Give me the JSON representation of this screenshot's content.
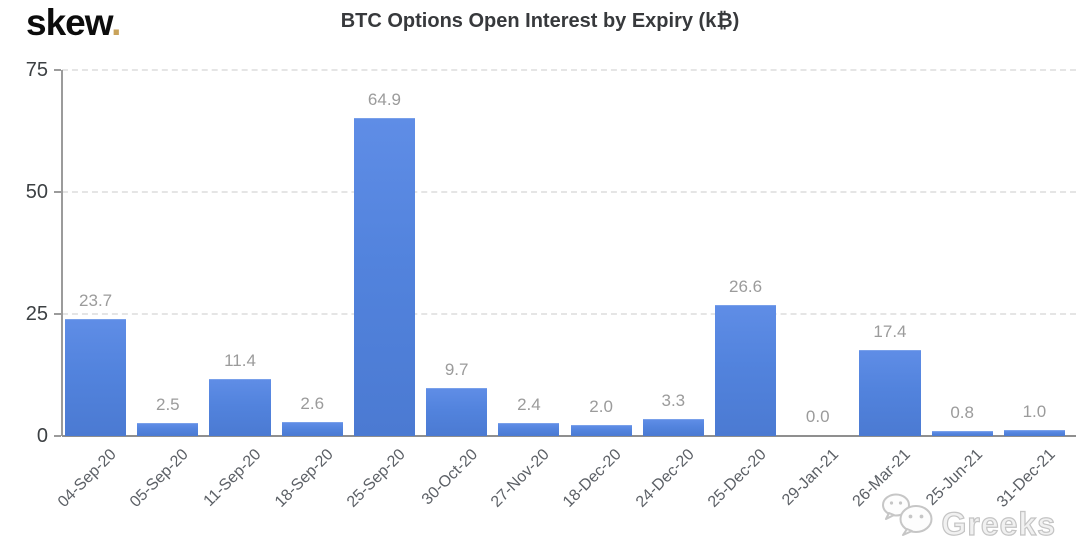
{
  "logo": {
    "text": "skew",
    "dot": ".",
    "dot_color": "#c9a35a"
  },
  "watermark": {
    "text": "Greeks",
    "icon": "wechat-icon"
  },
  "chart_data": {
    "type": "bar",
    "title": "BTC Options Open Interest by Expiry (k₿)",
    "categories": [
      "04-Sep-20",
      "05-Sep-20",
      "11-Sep-20",
      "18-Sep-20",
      "25-Sep-20",
      "30-Oct-20",
      "27-Nov-20",
      "18-Dec-20",
      "24-Dec-20",
      "25-Dec-20",
      "29-Jan-21",
      "26-Mar-21",
      "25-Jun-21",
      "31-Dec-21"
    ],
    "values": [
      23.7,
      2.5,
      11.4,
      2.6,
      64.9,
      9.7,
      2.4,
      2.0,
      3.3,
      26.6,
      0.0,
      17.4,
      0.8,
      1.0
    ],
    "value_labels": [
      "23.7",
      "2.5",
      "11.4",
      "2.6",
      "64.9",
      "9.7",
      "2.4",
      "2.0",
      "3.3",
      "26.6",
      "0.0",
      "17.4",
      "0.8",
      "1.0"
    ],
    "xlabel": "",
    "ylabel": "",
    "ylim": [
      0,
      75
    ],
    "yticks": [
      0,
      25,
      50,
      75
    ],
    "grid": "horizontal-dashed",
    "legend": "none",
    "bar_color": "#5585e0",
    "bar_color_dark": "#4b7ad2",
    "value_label_color": "#9b9b9b",
    "axis_color": "#9b9b9b",
    "gridline_color": "#e5e5e5"
  }
}
